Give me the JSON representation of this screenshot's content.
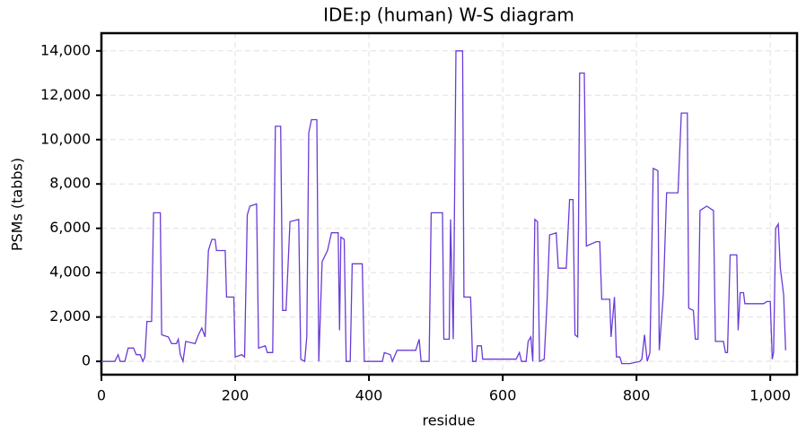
{
  "chart_data": {
    "type": "line",
    "title": "IDE:p (human) W-S diagram",
    "xlabel": "residue",
    "ylabel": "PSMs (tabbs)",
    "color": "#6a3bd6",
    "grid": true,
    "x": [
      0,
      20,
      25,
      28,
      35,
      40,
      48,
      52,
      58,
      62,
      65,
      68,
      75,
      78,
      88,
      90,
      100,
      105,
      112,
      115,
      118,
      122,
      126,
      140,
      145,
      150,
      155,
      160,
      165,
      170,
      172,
      185,
      187,
      198,
      200,
      210,
      214,
      218,
      222,
      232,
      235,
      245,
      248,
      256,
      260,
      268,
      271,
      276,
      282,
      295,
      298,
      304,
      307,
      310,
      314,
      322,
      325,
      330,
      338,
      344,
      354,
      356,
      358,
      363,
      366,
      372,
      375,
      390,
      393,
      420,
      423,
      432,
      435,
      442,
      470,
      475,
      478,
      490,
      493,
      510,
      512,
      520,
      522,
      526,
      530,
      540,
      542,
      552,
      555,
      560,
      562,
      568,
      570,
      620,
      625,
      628,
      635,
      638,
      642,
      645,
      648,
      652,
      655,
      662,
      666,
      670,
      680,
      683,
      695,
      700,
      705,
      708,
      712,
      715,
      722,
      725,
      740,
      745,
      748,
      760,
      762,
      767,
      770,
      775,
      778,
      790,
      805,
      808,
      812,
      816,
      820,
      825,
      832,
      834,
      840,
      845,
      862,
      867,
      876,
      878,
      885,
      888,
      892,
      895,
      905,
      915,
      918,
      930,
      933,
      936,
      940,
      950,
      952,
      955,
      960,
      962,
      990,
      995,
      1000,
      1003,
      1005,
      1008,
      1012,
      1015,
      1020,
      1023
    ],
    "values": [
      0,
      0,
      300,
      0,
      0,
      600,
      600,
      300,
      300,
      0,
      200,
      1800,
      1800,
      6700,
      6700,
      1200,
      1100,
      800,
      800,
      1000,
      300,
      0,
      900,
      800,
      1200,
      1500,
      1100,
      5000,
      5500,
      5500,
      5000,
      5000,
      2900,
      2900,
      200,
      300,
      200,
      6600,
      7000,
      7100,
      600,
      700,
      400,
      400,
      10600,
      10600,
      2300,
      2300,
      6300,
      6400,
      100,
      0,
      1100,
      10300,
      10900,
      10900,
      0,
      4500,
      5000,
      5800,
      5800,
      1400,
      5600,
      5500,
      0,
      0,
      4400,
      4400,
      0,
      0,
      400,
      300,
      0,
      500,
      500,
      1000,
      0,
      0,
      6700,
      6700,
      1000,
      1000,
      6400,
      1000,
      14000,
      14000,
      2900,
      2900,
      0,
      0,
      700,
      700,
      100,
      100,
      400,
      0,
      0,
      900,
      1100,
      0,
      6400,
      6300,
      0,
      100,
      2500,
      5700,
      5800,
      4200,
      4200,
      7300,
      7300,
      1200,
      1100,
      13000,
      13000,
      5200,
      5400,
      5400,
      2800,
      2800,
      1100,
      2900,
      200,
      200,
      -100,
      -100,
      0,
      100,
      1200,
      0,
      400,
      8700,
      8600,
      500,
      3000,
      7600,
      7600,
      11200,
      11200,
      2400,
      2300,
      1000,
      1000,
      6800,
      7000,
      6800,
      900,
      900,
      400,
      400,
      4800,
      4800,
      1400,
      3100,
      3100,
      2600,
      2600,
      2700,
      2700,
      100,
      400,
      6000,
      6200,
      4200,
      3000,
      500
    ],
    "xlim": [
      0,
      1040
    ],
    "ylim": [
      -600,
      14800
    ],
    "xticks": [
      0,
      200,
      400,
      600,
      800,
      {
        "value": 1000,
        "label": "1,000"
      }
    ],
    "yticks": [
      0,
      {
        "value": 2000,
        "label": "2,000"
      },
      {
        "value": 4000,
        "label": "4,000"
      },
      {
        "value": 6000,
        "label": "6,000"
      },
      {
        "value": 8000,
        "label": "8,000"
      },
      {
        "value": 10000,
        "label": "10,000"
      },
      {
        "value": 12000,
        "label": "12,000"
      },
      {
        "value": 14000,
        "label": "14,000"
      }
    ]
  }
}
